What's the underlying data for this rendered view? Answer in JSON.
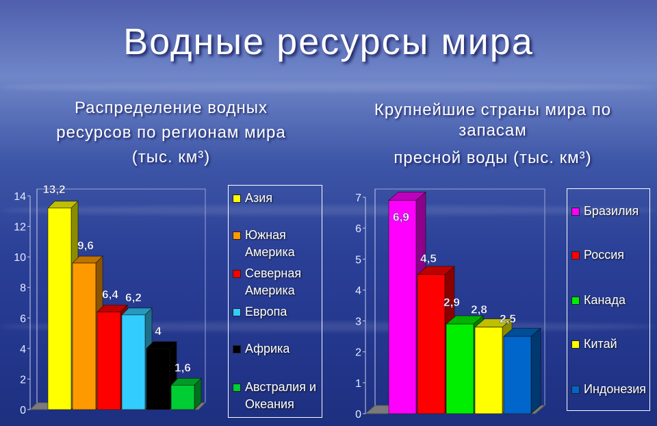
{
  "title": "Водные ресурсы мира",
  "left_subtitle": [
    "Распределение водных",
    "ресурсов по регионам мира",
    "(тыс. км³)"
  ],
  "right_subtitle": [
    "Крупнейшие страны мира по",
    "запасам",
    "пресной воды (тыс. км³)"
  ],
  "chart_data": [
    {
      "type": "bar",
      "title": "Распределение водных ресурсов по регионам мира (тыс. км³)",
      "categories": [
        "Азия",
        "Южная Америка",
        "Северная Америка",
        "Европа",
        "Африка",
        "Австралия и Океания"
      ],
      "values": [
        13.2,
        9.6,
        6.4,
        6.2,
        4,
        1.6
      ],
      "value_labels": [
        "13,2",
        "9,6",
        "6,4",
        "6,2",
        "4",
        "1,6"
      ],
      "colors": [
        "#ffff00",
        "#ff9900",
        "#ff0000",
        "#33ccff",
        "#000000",
        "#00cc33"
      ],
      "yticks": [
        "0",
        "2",
        "4",
        "6",
        "8",
        "10",
        "12",
        "14"
      ],
      "ylim": [
        0,
        14
      ],
      "legend": [
        "Азия",
        "Южная Америка",
        "Северная Америка",
        "Европа",
        "Африка",
        "Австралия и Океания"
      ],
      "legend_position": "right"
    },
    {
      "type": "bar",
      "title": "Крупнейшие страны мира по запасам пресной воды (тыс. км³)",
      "categories": [
        "Бразилия",
        "Россия",
        "Канада",
        "Китай",
        "Индонезия"
      ],
      "values": [
        6.9,
        4.5,
        2.9,
        2.8,
        2.5
      ],
      "value_labels": [
        "6,9",
        "4,5",
        "2,9",
        "2,8",
        "2,5"
      ],
      "colors": [
        "#ff00ff",
        "#ff0000",
        "#00ee00",
        "#ffff00",
        "#0066cc"
      ],
      "yticks": [
        "0",
        "1",
        "2",
        "3",
        "4",
        "5",
        "6",
        "7"
      ],
      "ylim": [
        0,
        7
      ],
      "legend": [
        "Бразилия",
        "Россия",
        "Канада",
        "Китай",
        "Индонезия"
      ],
      "legend_position": "right"
    }
  ]
}
